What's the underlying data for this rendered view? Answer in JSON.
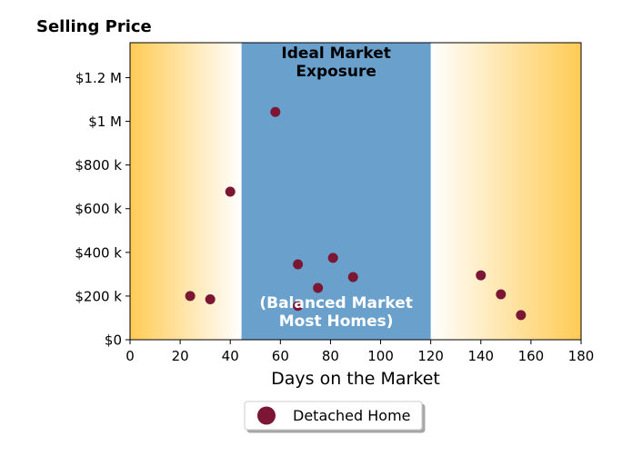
{
  "chart_data": {
    "type": "scatter",
    "title": "Selling Price",
    "xlabel": "Days on the Market",
    "ylabel": "",
    "xlim": [
      0,
      180
    ],
    "ylim": [
      0,
      1360000
    ],
    "x_ticks": [
      0,
      20,
      40,
      60,
      80,
      100,
      120,
      140,
      160,
      180
    ],
    "x_tick_labels": [
      "0",
      "20",
      "40",
      "60",
      "80",
      "100",
      "120",
      "140",
      "160",
      "180"
    ],
    "y_ticks": [
      0,
      200000,
      400000,
      600000,
      800000,
      1000000,
      1200000
    ],
    "y_tick_labels": [
      "$0",
      "$200 k",
      "$400 k",
      "$600 k",
      "$800 k",
      "$1 M",
      "$1.2 M"
    ],
    "grid": false,
    "legend_position": "bottom-center",
    "series": [
      {
        "name": "Detached Home",
        "color": "#7b1734",
        "points": [
          {
            "x": 24,
            "y": 200000
          },
          {
            "x": 32,
            "y": 185000
          },
          {
            "x": 40,
            "y": 678000
          },
          {
            "x": 58,
            "y": 1043000
          },
          {
            "x": 67,
            "y": 345000
          },
          {
            "x": 67,
            "y": 155000
          },
          {
            "x": 75,
            "y": 237000
          },
          {
            "x": 81,
            "y": 375000
          },
          {
            "x": 89,
            "y": 287000
          },
          {
            "x": 140,
            "y": 295000
          },
          {
            "x": 148,
            "y": 208000
          },
          {
            "x": 156,
            "y": 113000
          }
        ]
      }
    ],
    "bands": [
      {
        "x_range": [
          44.5,
          120
        ],
        "color": "#6aa0cc",
        "title_lines": [
          "Ideal Market",
          "Exposure"
        ],
        "subtitle_lines": [
          "(Balanced Market",
          "Most Homes)"
        ]
      }
    ],
    "side_gradients": {
      "color": "#ffcc55",
      "left_range": [
        0,
        44.5
      ],
      "right_range": [
        120,
        180
      ]
    }
  }
}
